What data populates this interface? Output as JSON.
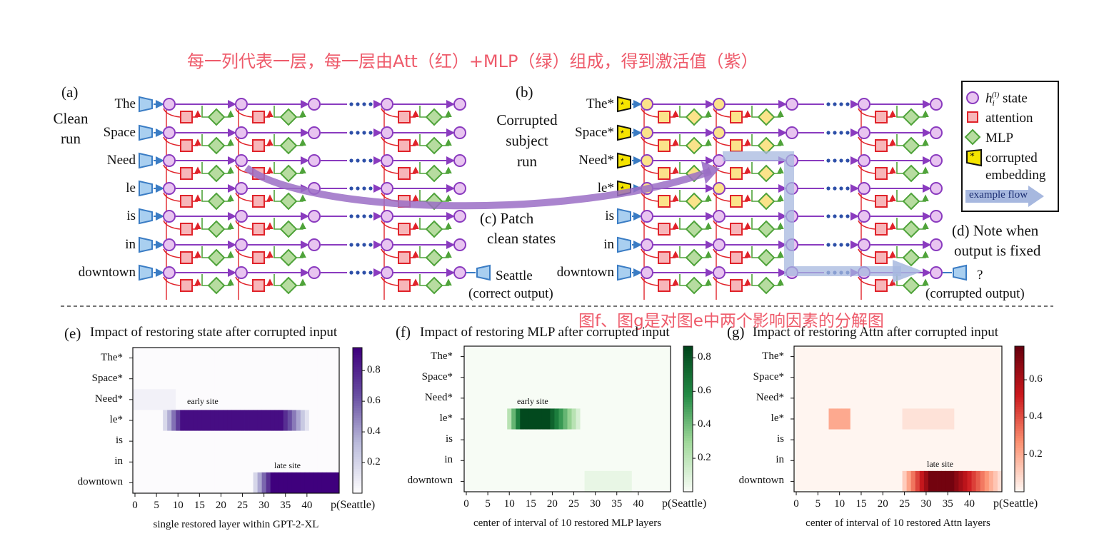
{
  "annotation_top": "每一列代表一层，每一层由Att（红）+MLP（绿）组成，得到激活值（紫）",
  "annotation_mid": "图f、图g是对图e中两个影响因素的分解图",
  "panel_a": {
    "label": "(a)",
    "caption_line1": "Clean",
    "caption_line2": "run",
    "tokens": [
      "The",
      "Space",
      "Need",
      "le",
      "is",
      "in",
      "downtown"
    ],
    "output_word": "Seattle",
    "output_note": "(correct output)"
  },
  "panel_b": {
    "label": "(b)",
    "caption_line1": "Corrupted",
    "caption_line2": "subject",
    "caption_line3": "run",
    "tokens": [
      "The*",
      "Space*",
      "Need*",
      "le*",
      "is",
      "in",
      "downtown"
    ],
    "output_word": "?",
    "output_note": "(corrupted output)"
  },
  "panel_c": {
    "line1": "(c) Patch",
    "line2": "clean states"
  },
  "panel_d": {
    "line1": "(d) Note when",
    "line2": "output is fixed"
  },
  "legend": {
    "state_symbol": "h",
    "state_sub": "i",
    "state_sup": "(l)",
    "state_label": "state",
    "attention": "attention",
    "mlp": "MLP",
    "corrupted_line1": "corrupted",
    "corrupted_line2": "embedding",
    "flow": "example flow",
    "star": "*",
    "colors": {
      "state": "#e8c4f0",
      "attention": "#f7b6b9",
      "mlp": "#b7dca0",
      "corrupted": "#f5e400",
      "flow": "#a7b8df"
    }
  },
  "heatmaps": [
    {
      "label": "(e)",
      "title": "Impact of restoring state after corrupted input",
      "xlabel": "single restored layer within GPT-2-XL",
      "cbar_label": "p(Seattle)",
      "site_label_1": "early site",
      "site_label_2": "late site",
      "cmap": "purple",
      "rows": [
        "The*",
        "Space*",
        "Need*",
        "le*",
        "is",
        "in",
        "downtown"
      ],
      "xticks": [
        "0",
        "5",
        "10",
        "15",
        "20",
        "25",
        "30",
        "35",
        "40"
      ],
      "cbar_ticks": [
        "0.2",
        "0.4",
        "0.6",
        "0.8"
      ]
    },
    {
      "label": "(f)",
      "title": "Impact of restoring MLP after corrupted input",
      "xlabel": "center of interval of 10 restored MLP layers",
      "cbar_label": "p(Seattle)",
      "site_label_1": "early site",
      "site_label_2": "",
      "cmap": "green",
      "rows": [
        "The*",
        "Space*",
        "Need*",
        "le*",
        "is",
        "in",
        "downtown"
      ],
      "xticks": [
        "0",
        "5",
        "10",
        "15",
        "20",
        "25",
        "30",
        "35",
        "40"
      ],
      "cbar_ticks": [
        "0.2",
        "0.4",
        "0.6",
        "0.8"
      ]
    },
    {
      "label": "(g)",
      "title": "Impact of restoring Attn after corrupted input",
      "xlabel": "center of interval of 10 restored Attn layers",
      "cbar_label": "p(Seattle)",
      "site_label_1": "",
      "site_label_2": "late site",
      "cmap": "red",
      "rows": [
        "The*",
        "Space*",
        "Need*",
        "le*",
        "is",
        "in",
        "downtown"
      ],
      "xticks": [
        "0",
        "5",
        "10",
        "15",
        "20",
        "25",
        "30",
        "35",
        "40"
      ],
      "cbar_ticks": [
        "0.2",
        "0.4",
        "0.6"
      ]
    }
  ],
  "chart_data": [
    {
      "type": "heatmap",
      "title": "Impact of restoring state after corrupted input",
      "xlabel": "single restored layer within GPT-2-XL",
      "colorbar_label": "p(Seattle)",
      "rows": [
        "The*",
        "Space*",
        "Need*",
        "le*",
        "is",
        "in",
        "downtown"
      ],
      "x_range": [
        0,
        47
      ],
      "colorbar_range": [
        0,
        0.95
      ],
      "notable": [
        {
          "row": "le*",
          "layers": [
            7,
            40
          ],
          "peak_layers": [
            11,
            34
          ],
          "peak_value": 0.9
        },
        {
          "row": "downtown",
          "layers": [
            28,
            47
          ],
          "peak_layers": [
            32,
            47
          ],
          "peak_value": 0.95
        },
        {
          "row": "Need*",
          "layers": [
            0,
            9
          ],
          "peak_value": 0.05
        }
      ]
    },
    {
      "type": "heatmap",
      "title": "Impact of restoring MLP after corrupted input",
      "xlabel": "center of interval of 10 restored MLP layers",
      "colorbar_label": "p(Seattle)",
      "rows": [
        "The*",
        "Space*",
        "Need*",
        "le*",
        "is",
        "in",
        "downtown"
      ],
      "x_range": [
        0,
        47
      ],
      "colorbar_range": [
        0,
        0.87
      ],
      "notable": [
        {
          "row": "le*",
          "layers": [
            10,
            26
          ],
          "peak_layers": [
            13,
            19
          ],
          "peak_value": 0.85
        },
        {
          "row": "downtown",
          "layers": [
            28,
            38
          ],
          "peak_value": 0.05
        }
      ]
    },
    {
      "type": "heatmap",
      "title": "Impact of restoring Attn after corrupted input",
      "xlabel": "center of interval of 10 restored Attn layers",
      "colorbar_label": "p(Seattle)",
      "rows": [
        "The*",
        "Space*",
        "Need*",
        "le*",
        "is",
        "in",
        "downtown"
      ],
      "x_range": [
        0,
        47
      ],
      "colorbar_range": [
        0,
        0.78
      ],
      "notable": [
        {
          "row": "downtown",
          "layers": [
            25,
            47
          ],
          "peak_layers": [
            31,
            36
          ],
          "peak_value": 0.75
        },
        {
          "row": "le*",
          "layers": [
            8,
            12
          ],
          "peak_value": 0.2
        },
        {
          "row": "le*",
          "layers": [
            25,
            36
          ],
          "peak_value": 0.05
        }
      ]
    }
  ]
}
